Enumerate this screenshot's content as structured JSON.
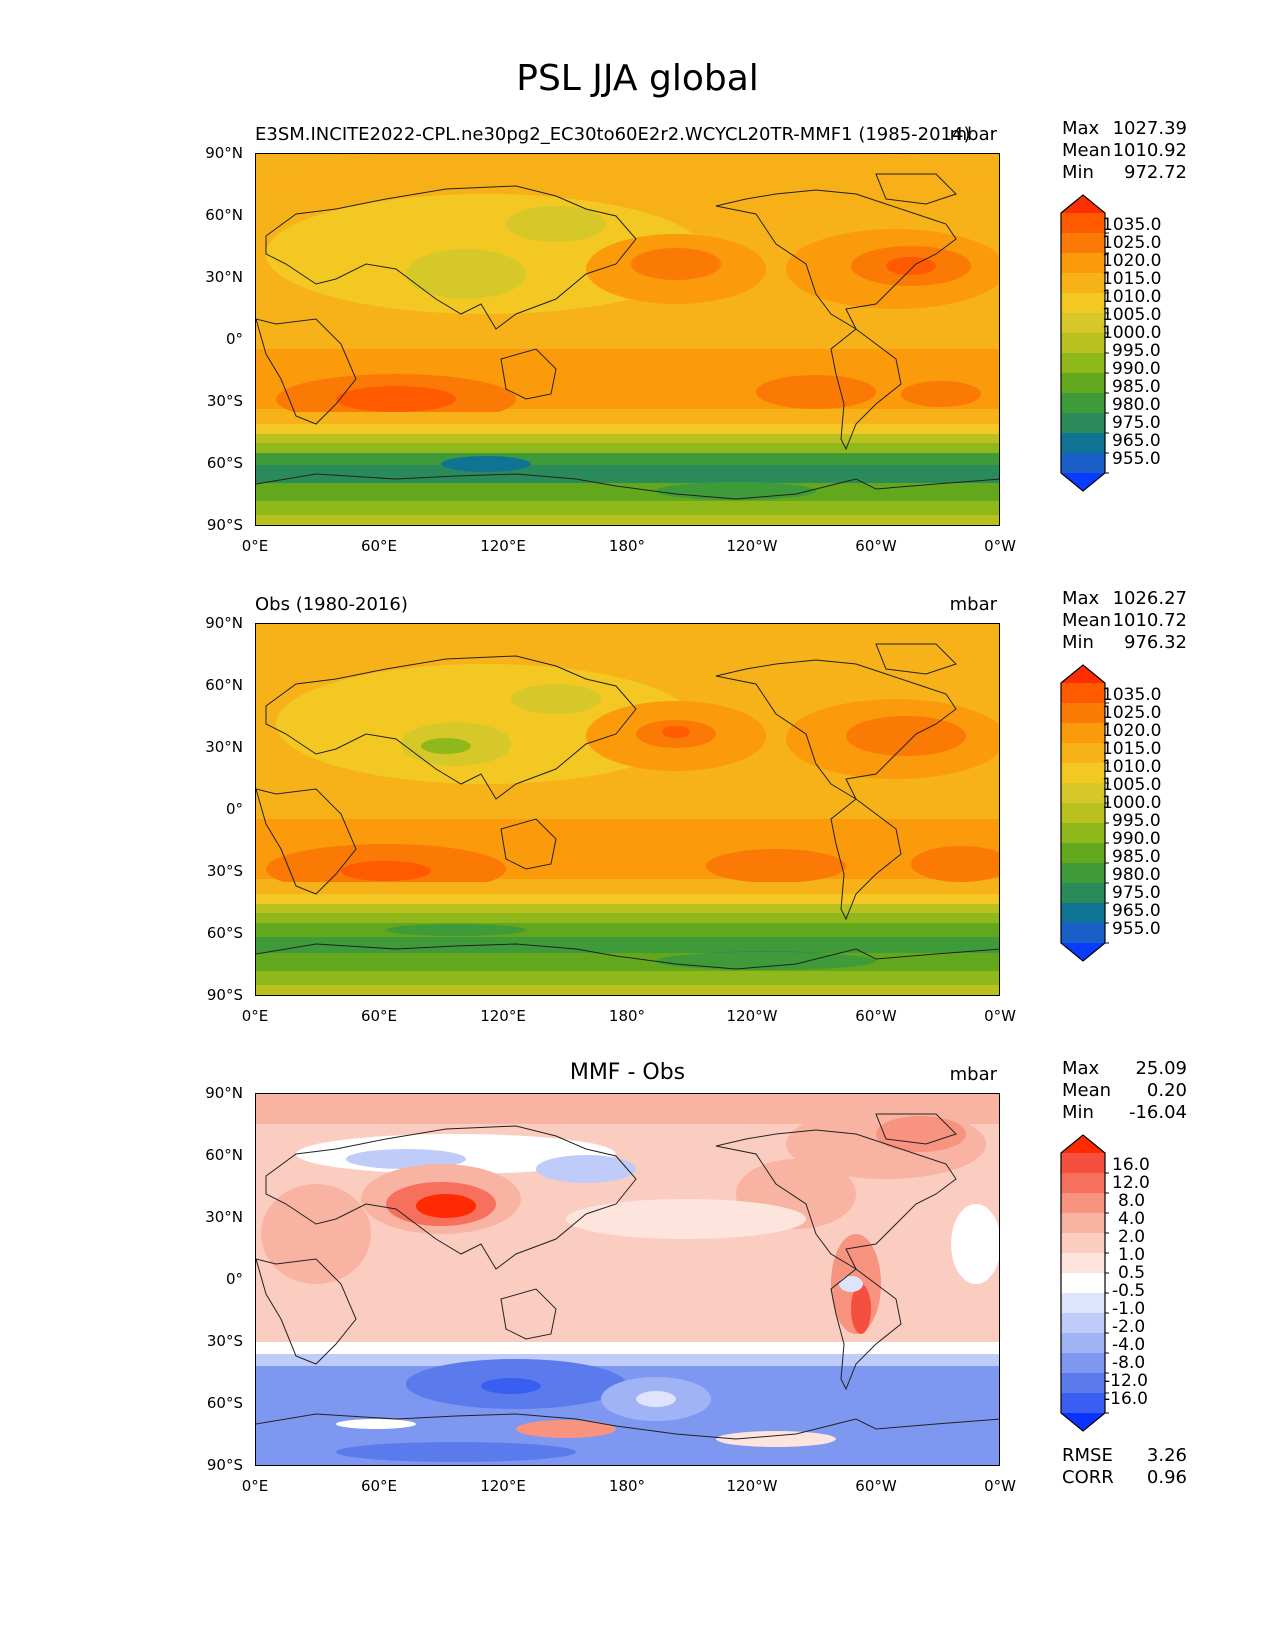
{
  "figure": {
    "title": "PSL JJA global"
  },
  "axes": {
    "lat_labels": [
      "90°N",
      "60°N",
      "30°N",
      "0°",
      "30°S",
      "60°S",
      "90°S"
    ],
    "lon_labels": [
      "0°E",
      "60°E",
      "120°E",
      "180°",
      "120°W",
      "60°W",
      "0°W"
    ]
  },
  "panels": [
    {
      "title_left": "E3SM.INCITE2022-CPL.ne30pg2_EC30to60E2r2.WCYCL20TR-MMF1 (1985-2014)",
      "title_center": "",
      "units": "mbar",
      "stats": {
        "max_label": "Max",
        "max": "1027.39",
        "mean_label": "Mean",
        "mean": "1010.92",
        "min_label": "Min",
        "min": "972.72"
      },
      "colorbar": {
        "levels": [
          "1035.0",
          "1025.0",
          "1020.0",
          "1015.0",
          "1010.0",
          "1005.0",
          "1000.0",
          "995.0",
          "990.0",
          "985.0",
          "980.0",
          "975.0",
          "965.0",
          "955.0"
        ],
        "colors": [
          "#ff2e00",
          "#ff5a00",
          "#fb7a06",
          "#fb9a0b",
          "#f7b21a",
          "#f3c823",
          "#d7c82a",
          "#b8c11f",
          "#8fb81a",
          "#63a81c",
          "#3f9a3a",
          "#2b8a5a",
          "#0f7394",
          "#1a5fc8",
          "#0a3cff"
        ]
      }
    },
    {
      "title_left": "Obs (1980-2016)",
      "title_center": "",
      "units": "mbar",
      "stats": {
        "max_label": "Max",
        "max": "1026.27",
        "mean_label": "Mean",
        "mean": "1010.72",
        "min_label": "Min",
        "min": "976.32"
      },
      "colorbar": {
        "levels": [
          "1035.0",
          "1025.0",
          "1020.0",
          "1015.0",
          "1010.0",
          "1005.0",
          "1000.0",
          "995.0",
          "990.0",
          "985.0",
          "980.0",
          "975.0",
          "965.0",
          "955.0"
        ],
        "colors": [
          "#ff2e00",
          "#ff5a00",
          "#fb7a06",
          "#fb9a0b",
          "#f7b21a",
          "#f3c823",
          "#d7c82a",
          "#b8c11f",
          "#8fb81a",
          "#63a81c",
          "#3f9a3a",
          "#2b8a5a",
          "#0f7394",
          "#1a5fc8",
          "#0a3cff"
        ]
      }
    },
    {
      "title_left": "",
      "title_center": "MMF - Obs",
      "units": "mbar",
      "stats": {
        "max_label": "Max",
        "max": "25.09",
        "mean_label": "Mean",
        "mean": "0.20",
        "min_label": "Min",
        "min": "-16.04"
      },
      "colorbar": {
        "levels": [
          "16.0",
          "12.0",
          "8.0",
          "4.0",
          "2.0",
          "1.0",
          "0.5",
          "-0.5",
          "-1.0",
          "-2.0",
          "-4.0",
          "-8.0",
          "-12.0",
          "-16.0"
        ],
        "colors": [
          "#ff2a00",
          "#f5503f",
          "#f7705e",
          "#f7937f",
          "#f9b3a2",
          "#fbcdc1",
          "#fde5de",
          "#ffffff",
          "#dde4fb",
          "#bfcbf8",
          "#a0b3f5",
          "#7e97f0",
          "#5b7bec",
          "#3a5ef2",
          "#0a33ff"
        ]
      },
      "extra_stats": {
        "rmse_label": "RMSE",
        "rmse": "3.26",
        "corr_label": "CORR",
        "corr": "0.96"
      }
    }
  ]
}
